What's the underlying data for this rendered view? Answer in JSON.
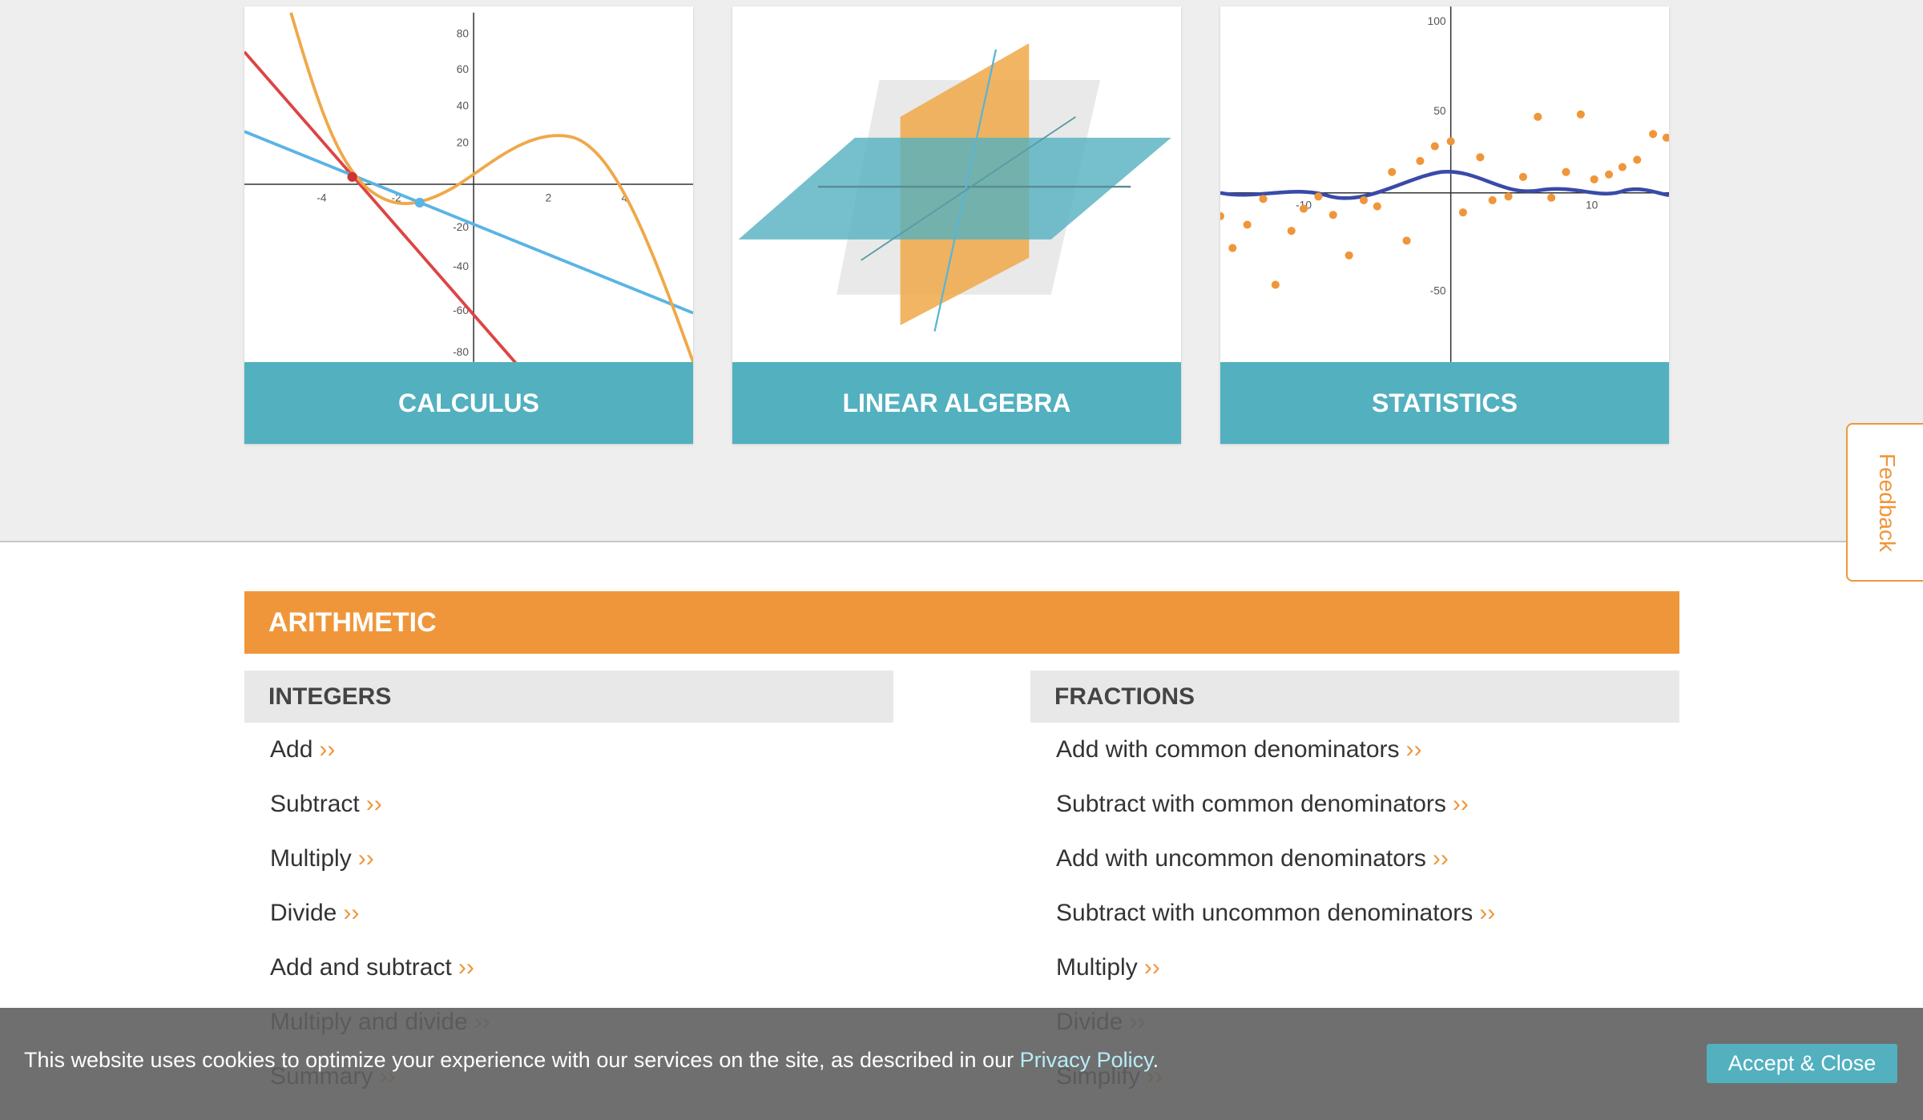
{
  "cards": [
    {
      "title": "CALCULUS",
      "y_ticks": [
        "80",
        "60",
        "40",
        "20",
        "-20",
        "-40",
        "-60",
        "-80"
      ],
      "x_ticks": [
        "-4",
        "-2",
        "2",
        "4"
      ]
    },
    {
      "title": "LINEAR ALGEBRA"
    },
    {
      "title": "STATISTICS",
      "y_ticks": [
        "100",
        "50",
        "-50"
      ],
      "x_ticks": [
        "-10",
        "10"
      ]
    }
  ],
  "feedback": "Feedback",
  "section": {
    "title": "ARITHMETIC",
    "more_marker": "››",
    "groups": [
      {
        "title": "INTEGERS",
        "items": [
          "Add",
          "Subtract",
          "Multiply",
          "Divide",
          "Add and subtract",
          "Multiply and divide",
          "Summary"
        ]
      },
      {
        "title": "FRACTIONS",
        "items": [
          "Add with common denominators",
          "Subtract with common denominators",
          "Add with uncommon denominators",
          "Subtract with uncommon denominators",
          "Multiply",
          "Divide",
          "Simplify"
        ]
      }
    ]
  },
  "cookie": {
    "text": "This website uses cookies to optimize your experience with our services on the site, as described in our ",
    "link": "Privacy Policy",
    "text_after": ".",
    "button": "Accept & Close"
  }
}
